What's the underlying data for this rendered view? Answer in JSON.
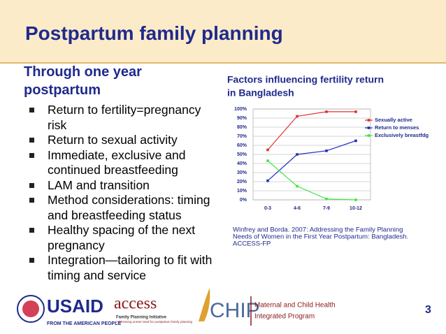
{
  "title": "Postpartum family planning",
  "left": {
    "heading": [
      "Through one year",
      "postpartum"
    ],
    "bullets": [
      "Return to fertility=pregnancy risk",
      "Return to sexual activity",
      "Immediate, exclusive and continued breastfeeding",
      "LAM and transition",
      "Method considerations: timing and breastfeeding status",
      "Healthy spacing of the next pregnancy",
      "Integration—tailoring to fit with timing and service"
    ]
  },
  "chart_data": {
    "type": "line",
    "title": [
      "Factors influencing fertility return",
      "in Bangladesh"
    ],
    "categories": [
      "0-3",
      "4-6",
      "7-9",
      "10-12"
    ],
    "series": [
      {
        "name": "Sexually active",
        "color": "#e03131",
        "values": [
          55,
          92,
          97,
          97
        ]
      },
      {
        "name": "Return to menses",
        "color": "#1f2fbf",
        "values": [
          21,
          50,
          54,
          65
        ]
      },
      {
        "name": "Exclusively breastfdg",
        "color": "#3ee83e",
        "values": [
          43,
          15,
          1,
          0
        ]
      }
    ],
    "ylim": [
      0,
      100
    ],
    "yticks": [
      {
        "value": 0,
        "label": "0%"
      },
      {
        "value": 10,
        "label": "10%"
      },
      {
        "value": 20,
        "label": "20%"
      },
      {
        "value": 30,
        "label": "30%"
      },
      {
        "value": 40,
        "label": "40%"
      },
      {
        "value": 50,
        "label": "50%"
      },
      {
        "value": 60,
        "label": "60%"
      },
      {
        "value": 70,
        "label": "70%"
      },
      {
        "value": 80,
        "label": "80%"
      },
      {
        "value": 90,
        "label": "90%"
      },
      {
        "value": 100,
        "label": "100%"
      }
    ],
    "grid": true,
    "legend": "right"
  },
  "citation": [
    "Winfrey and Borda. 2007:  Addressing the Family Planning",
    "Needs of Women in the First Year Postpartum: Bangladesh.",
    "ACCESS-FP"
  ],
  "logos": {
    "usaid": "USAID",
    "usaid_tag": "FROM THE AMERICAN PEOPLE",
    "access": "access",
    "access_sub": "Family Planning Initiative",
    "access_tag": "Addressing unmet need for postpartum family planning",
    "chip": "CHIP",
    "chip_line1": "Maternal and Child Health",
    "chip_line2": "Integrated Program"
  },
  "page_number": "3"
}
